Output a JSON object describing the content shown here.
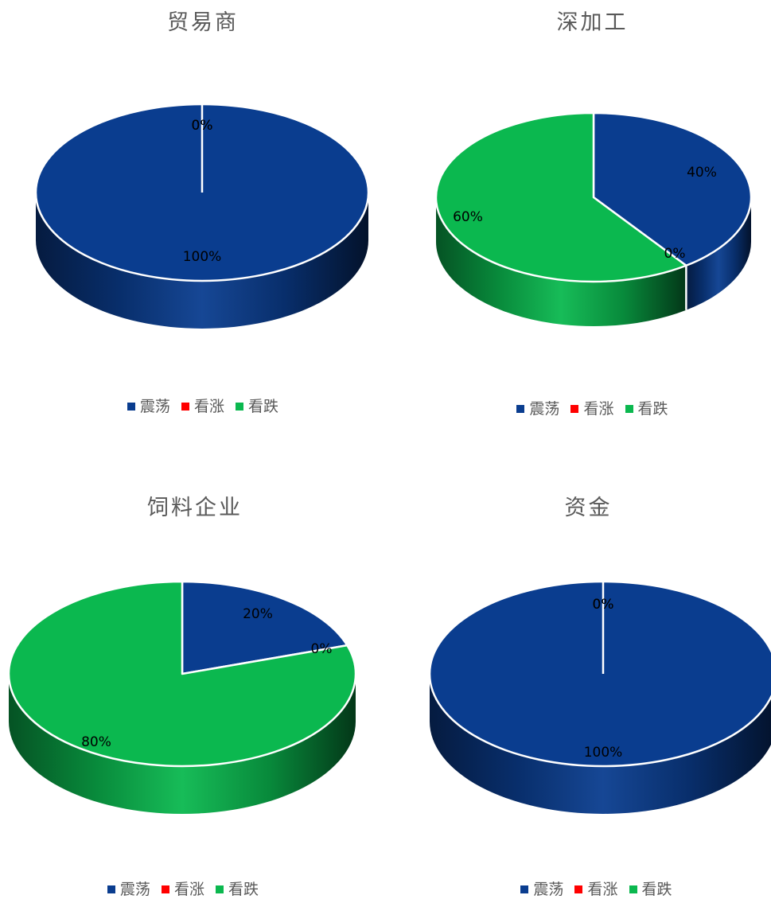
{
  "colors": {
    "震荡": "#0a3d8f",
    "看涨": "#ff0000",
    "看跌": "#0bb84f"
  },
  "chart_data": [
    {
      "type": "pie",
      "title": "贸易商",
      "categories": [
        "震荡",
        "看涨",
        "看跌"
      ],
      "values": [
        100,
        0,
        0
      ],
      "labels": [
        "100%",
        "0%",
        "0%"
      ],
      "legend": "bottom",
      "legend_labels": [
        "震荡",
        "看涨",
        "看跌"
      ]
    },
    {
      "type": "pie",
      "title": "深加工",
      "categories": [
        "震荡",
        "看涨",
        "看跌"
      ],
      "values": [
        40,
        0,
        60
      ],
      "labels": [
        "40%",
        "0%",
        "60%"
      ],
      "legend": "bottom",
      "legend_labels": [
        "震荡",
        "看涨",
        "看跌"
      ]
    },
    {
      "type": "pie",
      "title": "饲料企业",
      "categories": [
        "震荡",
        "看涨",
        "看跌"
      ],
      "values": [
        20,
        0,
        80
      ],
      "labels": [
        "20%",
        "0%",
        "80%"
      ],
      "legend": "bottom",
      "legend_labels": [
        "震荡",
        "看涨",
        "看跌"
      ]
    },
    {
      "type": "pie",
      "title": "资金",
      "categories": [
        "震荡",
        "看涨",
        "看跌"
      ],
      "values": [
        100,
        0,
        0
      ],
      "labels": [
        "100%",
        "0%",
        "0%"
      ],
      "legend": "bottom",
      "legend_labels": [
        "震荡",
        "看涨",
        "看跌"
      ]
    }
  ]
}
